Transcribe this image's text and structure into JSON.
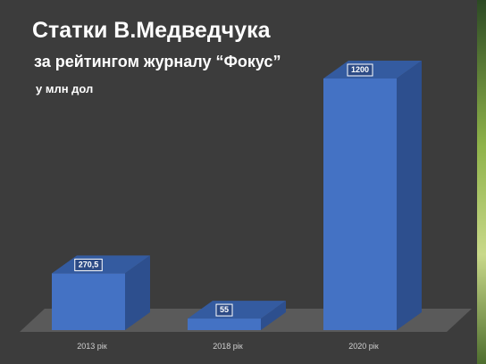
{
  "chart_data": {
    "type": "bar3d",
    "title": "Статки В.Медведчука",
    "subtitle": "за рейтингом журналу “Фокус”",
    "unit_label": "у млн дол",
    "categories": [
      "2013 рік",
      "2018 рік",
      "2020 рік"
    ],
    "values": [
      270.5,
      55,
      1200
    ],
    "value_labels": [
      "270,5",
      "55",
      "1200"
    ],
    "color": "#4472c4"
  }
}
